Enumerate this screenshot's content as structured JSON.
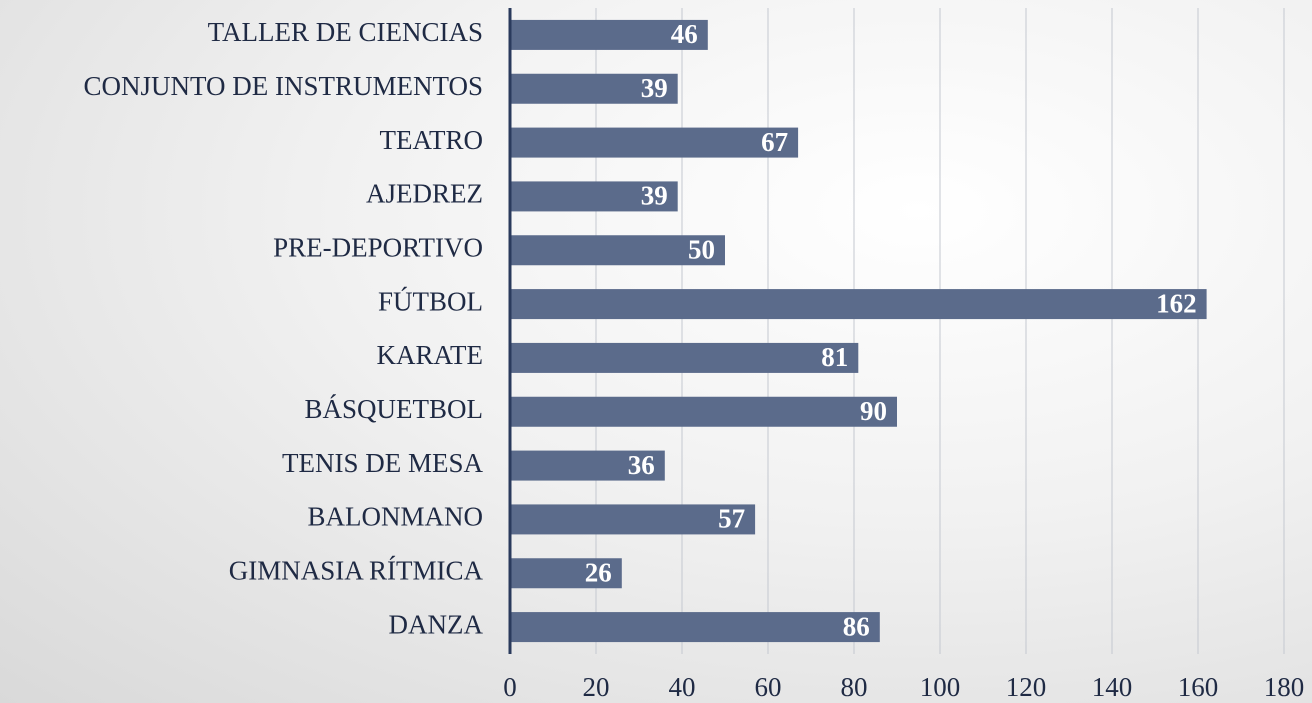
{
  "chart_data": {
    "type": "bar",
    "orientation": "horizontal",
    "categories": [
      "TALLER DE CIENCIAS",
      "CONJUNTO DE INSTRUMENTOS",
      "TEATRO",
      "AJEDREZ",
      "PRE-DEPORTIVO",
      "FÚTBOL",
      "KARATE",
      "BÁSQUETBOL",
      "TENIS DE MESA",
      "BALONMANO",
      "GIMNASIA RÍTMICA",
      "DANZA"
    ],
    "values": [
      46,
      39,
      67,
      39,
      50,
      162,
      81,
      90,
      36,
      57,
      26,
      86
    ],
    "color": "#5b6b8b",
    "xlim": [
      0,
      180
    ],
    "xticks": [
      0,
      20,
      40,
      60,
      80,
      100,
      120,
      140,
      160,
      180
    ],
    "grid": true
  }
}
